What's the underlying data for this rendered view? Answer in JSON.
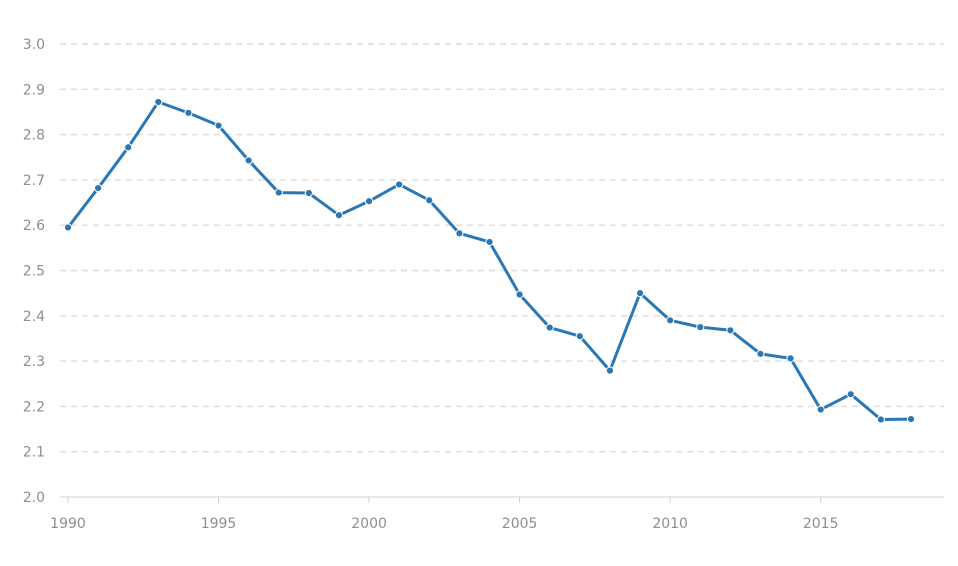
{
  "chart_data": {
    "type": "line",
    "title": "",
    "xlabel": "",
    "ylabel": "",
    "x": [
      1990,
      1991,
      1992,
      1993,
      1994,
      1995,
      1996,
      1997,
      1998,
      1999,
      2000,
      2001,
      2002,
      2003,
      2004,
      2005,
      2006,
      2007,
      2008,
      2009,
      2010,
      2011,
      2012,
      2013,
      2014,
      2015,
      2016,
      2017,
      2018
    ],
    "series": [
      {
        "values": [
          2.595,
          2.682,
          2.772,
          2.872,
          2.848,
          2.82,
          2.743,
          2.672,
          2.671,
          2.622,
          2.653,
          2.69,
          2.655,
          2.582,
          2.563,
          2.447,
          2.374,
          2.355,
          2.279,
          2.45,
          2.39,
          2.375,
          2.368,
          2.316,
          2.306,
          2.193,
          2.227,
          2.171,
          2.172
        ],
        "color": "#2a77b3"
      }
    ],
    "xlim": [
      1990,
      2018
    ],
    "ylim": [
      2.0,
      3.0
    ],
    "y_ticks": [
      "2.0",
      "2.1",
      "2.2",
      "2.3",
      "2.4",
      "2.5",
      "2.6",
      "2.7",
      "2.8",
      "2.9",
      "3.0"
    ],
    "x_ticks": [
      "1990",
      "1995",
      "2000",
      "2005",
      "2010",
      "2015"
    ],
    "grid": "horizontal-dashed",
    "legend": "none"
  }
}
